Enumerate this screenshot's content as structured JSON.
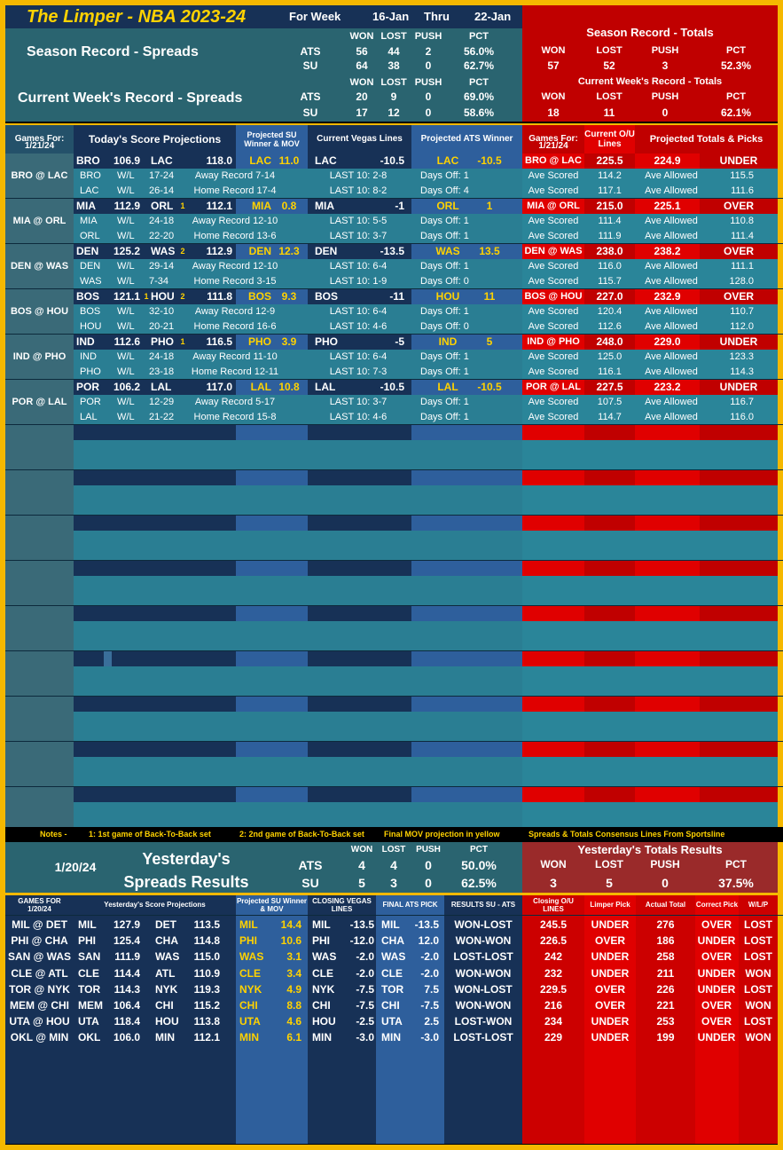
{
  "colors": {
    "navy": "#173156",
    "teal": "#2a7e93",
    "teal2": "#2e8aa0",
    "red": "#e00000",
    "darkred": "#c00000",
    "gold": "#f5b800",
    "yellow": "#ffd200",
    "mid": "#1e5c88",
    "gray": "#3a6a78"
  },
  "header": {
    "title": "The Limper - NBA 2023-24",
    "for_week": "For Week",
    "start": "16-Jan",
    "thru": "Thru",
    "end": "22-Jan"
  },
  "season": {
    "spreads_title": "Season Record - Spreads",
    "week_title": "Current Week's Record - Spreads",
    "cols": [
      "WON",
      "LOST",
      "PUSH",
      "PCT"
    ],
    "ats": [
      "ATS",
      "56",
      "44",
      "2",
      "56.0%"
    ],
    "su": [
      "SU",
      "64",
      "38",
      "0",
      "62.7%"
    ],
    "w_ats": [
      "ATS",
      "20",
      "9",
      "0",
      "69.0%"
    ],
    "w_su": [
      "SU",
      "17",
      "12",
      "0",
      "58.6%"
    ],
    "totals_title": "Season Record - Totals",
    "totals": [
      "57",
      "52",
      "3",
      "52.3%"
    ],
    "wk_totals_title": "Current Week's Record - Totals",
    "wk_totals": [
      "18",
      "11",
      "0",
      "62.1%"
    ]
  },
  "games_head": {
    "games_for": "Games For:",
    "date": "1/21/24",
    "proj": "Today's Score Projections",
    "su_winner": "Projected SU Winner & MOV",
    "vegas": "Current Vegas Lines",
    "ats": "Projected ATS Winner",
    "games_for2": "Games For:",
    "date2": "1/21/24",
    "current_ou": "Current O/U Lines",
    "totals": "Projected Totals & Picks"
  },
  "games": [
    {
      "label": "BRO @ LAC",
      "a": "BRO",
      "as": "106.9",
      "an": "",
      "h": "LAC",
      "hs": "118.0",
      "hn": "",
      "suw": "LAC",
      "sum": "11.0",
      "vt": "LAC",
      "vl": "-10.5",
      "atsw": "LAC",
      "atsl": "-10.5",
      "m": "BRO @ LAC",
      "ou": "225.5",
      "pt": "224.9",
      "pick": "UNDER",
      "r1": [
        "BRO",
        "W/L",
        "17-24",
        "Away Record 7-14",
        "LAST 10: 2-8",
        "Days Off: 1",
        "Ave Scored",
        "114.2",
        "Ave Allowed",
        "115.5"
      ],
      "r2": [
        "LAC",
        "W/L",
        "26-14",
        "Home Record 17-4",
        "LAST 10: 8-2",
        "Days Off: 4",
        "Ave Scored",
        "117.1",
        "Ave Allowed",
        "111.6"
      ]
    },
    {
      "label": "MIA @ ORL",
      "a": "MIA",
      "as": "112.9",
      "an": "",
      "h": "ORL",
      "hs": "112.1",
      "hn": "1",
      "suw": "MIA",
      "sum": "0.8",
      "vt": "MIA",
      "vl": "-1",
      "atsw": "ORL",
      "atsl": "1",
      "m": "MIA @ ORL",
      "ou": "215.0",
      "pt": "225.1",
      "pick": "OVER",
      "r1": [
        "MIA",
        "W/L",
        "24-18",
        "Away Record 12-10",
        "LAST 10: 5-5",
        "Days Off: 1",
        "Ave Scored",
        "111.4",
        "Ave Allowed",
        "110.8"
      ],
      "r2": [
        "ORL",
        "W/L",
        "22-20",
        "Home Record 13-6",
        "LAST 10: 3-7",
        "Days Off: 1",
        "Ave Scored",
        "111.9",
        "Ave Allowed",
        "111.4"
      ]
    },
    {
      "label": "DEN @ WAS",
      "a": "DEN",
      "as": "125.2",
      "an": "",
      "h": "WAS",
      "hs": "112.9",
      "hn": "2",
      "suw": "DEN",
      "sum": "12.3",
      "vt": "DEN",
      "vl": "-13.5",
      "atsw": "WAS",
      "atsl": "13.5",
      "m": "DEN @ WAS",
      "ou": "238.0",
      "pt": "238.2",
      "pick": "OVER",
      "r1": [
        "DEN",
        "W/L",
        "29-14",
        "Away Record 12-10",
        "LAST 10: 6-4",
        "Days Off: 1",
        "Ave Scored",
        "116.0",
        "Ave Allowed",
        "111.1"
      ],
      "r2": [
        "WAS",
        "W/L",
        "7-34",
        "Home Record 3-15",
        "LAST 10: 1-9",
        "Days Off: 0",
        "Ave Scored",
        "115.7",
        "Ave Allowed",
        "128.0"
      ]
    },
    {
      "label": "BOS @ HOU",
      "a": "BOS",
      "as": "121.1",
      "an": "1",
      "h": "HOU",
      "hs": "111.8",
      "hn": "2",
      "suw": "BOS",
      "sum": "9.3",
      "vt": "BOS",
      "vl": "-11",
      "atsw": "HOU",
      "atsl": "11",
      "m": "BOS @ HOU",
      "ou": "227.0",
      "pt": "232.9",
      "pick": "OVER",
      "r1": [
        "BOS",
        "W/L",
        "32-10",
        "Away Record 12-9",
        "LAST 10: 6-4",
        "Days Off: 1",
        "Ave Scored",
        "120.4",
        "Ave Allowed",
        "110.7"
      ],
      "r2": [
        "HOU",
        "W/L",
        "20-21",
        "Home Record 16-6",
        "LAST 10: 4-6",
        "Days Off: 0",
        "Ave Scored",
        "112.6",
        "Ave Allowed",
        "112.0"
      ]
    },
    {
      "label": "IND @ PHO",
      "a": "IND",
      "as": "112.6",
      "an": "",
      "h": "PHO",
      "hs": "116.5",
      "hn": "1",
      "suw": "PHO",
      "sum": "3.9",
      "vt": "PHO",
      "vl": "-5",
      "atsw": "IND",
      "atsl": "5",
      "m": "IND @ PHO",
      "ou": "248.0",
      "pt": "229.0",
      "pick": "UNDER",
      "r1": [
        "IND",
        "W/L",
        "24-18",
        "Away Record 11-10",
        "LAST 10: 6-4",
        "Days Off: 1",
        "Ave Scored",
        "125.0",
        "Ave Allowed",
        "123.3"
      ],
      "r2": [
        "PHO",
        "W/L",
        "23-18",
        "Home Record 12-11",
        "LAST 10: 7-3",
        "Days Off: 1",
        "Ave Scored",
        "116.1",
        "Ave Allowed",
        "114.3"
      ]
    },
    {
      "label": "POR @ LAL",
      "a": "POR",
      "as": "106.2",
      "an": "",
      "h": "LAL",
      "hs": "117.0",
      "hn": "",
      "suw": "LAL",
      "sum": "10.8",
      "vt": "LAL",
      "vl": "-10.5",
      "atsw": "LAL",
      "atsl": "-10.5",
      "m": "POR @ LAL",
      "ou": "227.5",
      "pt": "223.2",
      "pick": "UNDER",
      "r1": [
        "POR",
        "W/L",
        "12-29",
        "Away Record 5-17",
        "LAST 10: 3-7",
        "Days Off: 1",
        "Ave Scored",
        "107.5",
        "Ave Allowed",
        "116.7"
      ],
      "r2": [
        "LAL",
        "W/L",
        "21-22",
        "Home Record 15-8",
        "LAST 10: 4-6",
        "Days Off: 1",
        "Ave Scored",
        "114.7",
        "Ave Allowed",
        "116.0"
      ]
    }
  ],
  "notes": {
    "n0": "Notes -",
    "n1": "1: 1st game of Back-To-Back set",
    "n2": "2: 2nd game of Back-To-Back set",
    "n3": "Final MOV projection in yellow",
    "n4": "Spreads & Totals Consensus Lines From Sportsline"
  },
  "yesterday": {
    "date": "1/20/24",
    "title1": "Yesterday's",
    "title2": "Spreads Results",
    "cols": [
      "WON",
      "LOST",
      "PUSH",
      "PCT"
    ],
    "ats": [
      "ATS",
      "4",
      "4",
      "0",
      "50.0%"
    ],
    "su": [
      "SU",
      "5",
      "3",
      "0",
      "62.5%"
    ],
    "totals_title": "Yesterday's Totals Results",
    "totals": [
      "3",
      "5",
      "0",
      "37.5%"
    ]
  },
  "yhead": {
    "games_for": "GAMES FOR 1/20/24",
    "proj": "Yesterday's Score Projections",
    "suw": "Projected SU Winner & MOV",
    "closing": "CLOSING VEGAS LINES",
    "final": "FINAL ATS PICK",
    "results": "RESULTS SU - ATS",
    "ou": "Closing O/U LINES",
    "pick": "Limper Pick",
    "actual": "Actual Total",
    "correct": "Correct Pick",
    "wlp": "W/L/P"
  },
  "yrows": [
    [
      "MIL @ DET",
      "MIL",
      "127.9",
      "DET",
      "113.5",
      "MIL",
      "14.4",
      "MIL",
      "-13.5",
      "MIL",
      "-13.5",
      "WON-LOST",
      "245.5",
      "UNDER",
      "276",
      "OVER",
      "LOST"
    ],
    [
      "PHI @ CHA",
      "PHI",
      "125.4",
      "CHA",
      "114.8",
      "PHI",
      "10.6",
      "PHI",
      "-12.0",
      "CHA",
      "12.0",
      "WON-WON",
      "226.5",
      "OVER",
      "186",
      "UNDER",
      "LOST"
    ],
    [
      "SAN @ WAS",
      "SAN",
      "111.9",
      "WAS",
      "115.0",
      "WAS",
      "3.1",
      "WAS",
      "-2.0",
      "WAS",
      "-2.0",
      "LOST-LOST",
      "242",
      "UNDER",
      "258",
      "OVER",
      "LOST"
    ],
    [
      "CLE @ ATL",
      "CLE",
      "114.4",
      "ATL",
      "110.9",
      "CLE",
      "3.4",
      "CLE",
      "-2.0",
      "CLE",
      "-2.0",
      "WON-WON",
      "232",
      "UNDER",
      "211",
      "UNDER",
      "WON"
    ],
    [
      "TOR @ NYK",
      "TOR",
      "114.3",
      "NYK",
      "119.3",
      "NYK",
      "4.9",
      "NYK",
      "-7.5",
      "TOR",
      "7.5",
      "WON-LOST",
      "229.5",
      "OVER",
      "226",
      "UNDER",
      "LOST"
    ],
    [
      "MEM @ CHI",
      "MEM",
      "106.4",
      "CHI",
      "115.2",
      "CHI",
      "8.8",
      "CHI",
      "-7.5",
      "CHI",
      "-7.5",
      "WON-WON",
      "216",
      "OVER",
      "221",
      "OVER",
      "WON"
    ],
    [
      "UTA @ HOU",
      "UTA",
      "118.4",
      "HOU",
      "113.8",
      "UTA",
      "4.6",
      "HOU",
      "-2.5",
      "UTA",
      "2.5",
      "LOST-WON",
      "234",
      "UNDER",
      "253",
      "OVER",
      "LOST"
    ],
    [
      "OKL @ MIN",
      "OKL",
      "106.0",
      "MIN",
      "112.1",
      "MIN",
      "6.1",
      "MIN",
      "-3.0",
      "MIN",
      "-3.0",
      "LOST-LOST",
      "229",
      "UNDER",
      "199",
      "UNDER",
      "WON"
    ]
  ]
}
